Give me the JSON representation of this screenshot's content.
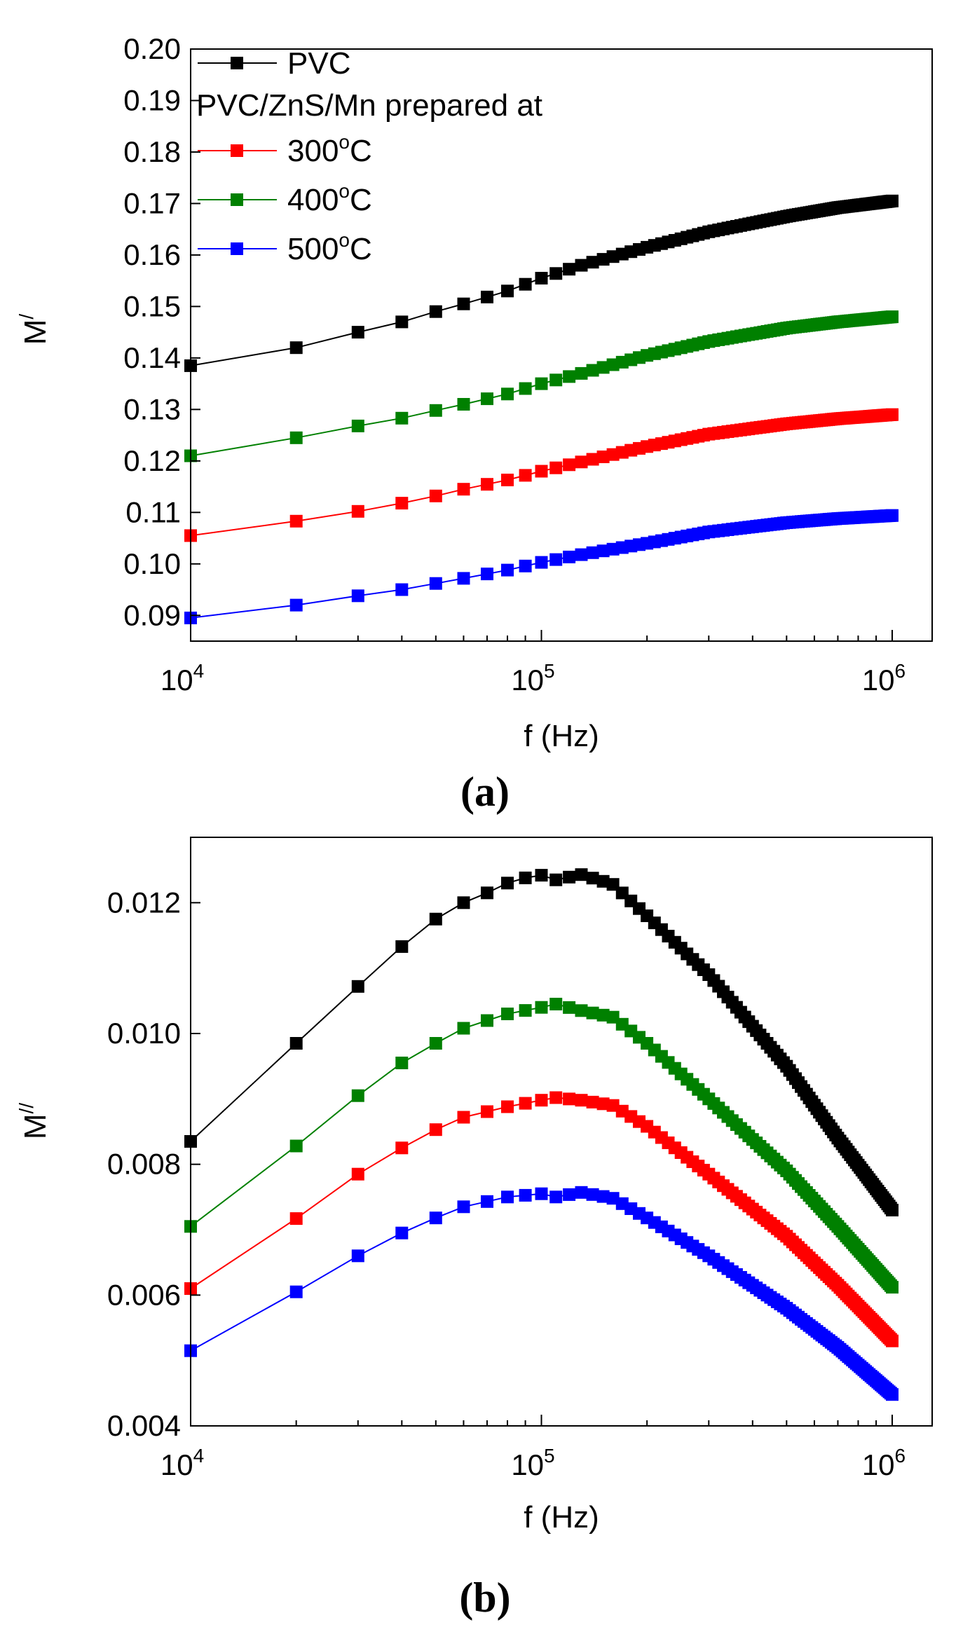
{
  "colors": {
    "PVC": "#000000",
    "300": "#ff0000",
    "400": "#008000",
    "500": "#0000ff"
  },
  "legend": {
    "items": [
      {
        "key": "PVC",
        "label": "PVC"
      },
      {
        "key": "heading",
        "label": "PVC/ZnS/Mn prepared at"
      },
      {
        "key": "300",
        "label": "300",
        "sup": "o",
        "unit": "C"
      },
      {
        "key": "400",
        "label": "400",
        "sup": "o",
        "unit": "C"
      },
      {
        "key": "500",
        "label": "500",
        "sup": "o",
        "unit": "C"
      }
    ]
  },
  "chart_data": [
    {
      "type": "scatter",
      "panel_label": "(a)",
      "xlabel": "f (Hz)",
      "ylabel_base": "M",
      "ylabel_sup": "/",
      "xscale": "log",
      "xlim": [
        10000,
        1300000
      ],
      "ylim": [
        0.085,
        0.2
      ],
      "x_ticks": [
        {
          "value": 10000,
          "base": "10",
          "exp": "4"
        },
        {
          "value": 100000,
          "base": "10",
          "exp": "5"
        },
        {
          "value": 1000000,
          "base": "10",
          "exp": "6"
        }
      ],
      "y_ticks": [
        {
          "value": 0.09,
          "label": "0.09"
        },
        {
          "value": 0.1,
          "label": "0.10"
        },
        {
          "value": 0.11,
          "label": "0.11"
        },
        {
          "value": 0.12,
          "label": "0.12"
        },
        {
          "value": 0.13,
          "label": "0.13"
        },
        {
          "value": 0.14,
          "label": "0.14"
        },
        {
          "value": 0.15,
          "label": "0.15"
        },
        {
          "value": 0.16,
          "label": "0.16"
        },
        {
          "value": 0.17,
          "label": "0.17"
        },
        {
          "value": 0.18,
          "label": "0.18"
        },
        {
          "value": 0.19,
          "label": "0.19"
        },
        {
          "value": 0.2,
          "label": "0.20"
        }
      ],
      "legend_position": "top-left",
      "series": [
        {
          "key": "PVC",
          "name": "PVC",
          "color": "#000000",
          "anchors": [
            [
              10000,
              0.1385
            ],
            [
              20000,
              0.142
            ],
            [
              30000,
              0.145
            ],
            [
              40000,
              0.147
            ],
            [
              50000,
              0.149
            ],
            [
              60000,
              0.1505
            ],
            [
              80000,
              0.153
            ],
            [
              100000,
              0.1555
            ],
            [
              130000,
              0.158
            ],
            [
              200000,
              0.1615
            ],
            [
              300000,
              0.1645
            ],
            [
              500000,
              0.1675
            ],
            [
              700000,
              0.1692
            ],
            [
              1000000,
              0.1705
            ]
          ]
        },
        {
          "key": "400",
          "name": "400oC",
          "color": "#008000",
          "anchors": [
            [
              10000,
              0.121
            ],
            [
              20000,
              0.1245
            ],
            [
              30000,
              0.1268
            ],
            [
              40000,
              0.1283
            ],
            [
              50000,
              0.1298
            ],
            [
              60000,
              0.131
            ],
            [
              80000,
              0.133
            ],
            [
              100000,
              0.135
            ],
            [
              130000,
              0.137
            ],
            [
              200000,
              0.1405
            ],
            [
              300000,
              0.1432
            ],
            [
              500000,
              0.1458
            ],
            [
              700000,
              0.147
            ],
            [
              1000000,
              0.148
            ]
          ]
        },
        {
          "key": "300",
          "name": "300oC",
          "color": "#ff0000",
          "anchors": [
            [
              10000,
              0.1055
            ],
            [
              20000,
              0.1083
            ],
            [
              30000,
              0.1102
            ],
            [
              40000,
              0.1118
            ],
            [
              50000,
              0.1132
            ],
            [
              60000,
              0.1145
            ],
            [
              80000,
              0.1163
            ],
            [
              100000,
              0.118
            ],
            [
              130000,
              0.1198
            ],
            [
              200000,
              0.1228
            ],
            [
              300000,
              0.1252
            ],
            [
              500000,
              0.1272
            ],
            [
              700000,
              0.1282
            ],
            [
              1000000,
              0.129
            ]
          ]
        },
        {
          "key": "500",
          "name": "500oC",
          "color": "#0000ff",
          "anchors": [
            [
              10000,
              0.0895
            ],
            [
              20000,
              0.092
            ],
            [
              30000,
              0.0938
            ],
            [
              40000,
              0.095
            ],
            [
              50000,
              0.0962
            ],
            [
              60000,
              0.0972
            ],
            [
              80000,
              0.0988
            ],
            [
              100000,
              0.1003
            ],
            [
              130000,
              0.1018
            ],
            [
              200000,
              0.104
            ],
            [
              300000,
              0.1062
            ],
            [
              500000,
              0.108
            ],
            [
              700000,
              0.1088
            ],
            [
              1000000,
              0.1094
            ]
          ]
        }
      ]
    },
    {
      "type": "scatter",
      "panel_label": "(b)",
      "xlabel": "f (Hz)",
      "ylabel_base": "M",
      "ylabel_sup": "//",
      "xscale": "log",
      "xlim": [
        10000,
        1300000
      ],
      "ylim": [
        0.004,
        0.013
      ],
      "x_ticks": [
        {
          "value": 10000,
          "base": "10",
          "exp": "4"
        },
        {
          "value": 100000,
          "base": "10",
          "exp": "5"
        },
        {
          "value": 1000000,
          "base": "10",
          "exp": "6"
        }
      ],
      "y_ticks": [
        {
          "value": 0.004,
          "label": "0.004"
        },
        {
          "value": 0.006,
          "label": "0.006"
        },
        {
          "value": 0.008,
          "label": "0.008"
        },
        {
          "value": 0.01,
          "label": "0.010"
        },
        {
          "value": 0.012,
          "label": "0.012"
        }
      ],
      "series": [
        {
          "key": "PVC",
          "name": "PVC",
          "color": "#000000",
          "anchors": [
            [
              10000,
              0.00835
            ],
            [
              20000,
              0.00985
            ],
            [
              30000,
              0.01072
            ],
            [
              40000,
              0.01133
            ],
            [
              50000,
              0.01175
            ],
            [
              60000,
              0.012
            ],
            [
              70000,
              0.01215
            ],
            [
              80000,
              0.0123
            ],
            [
              90000,
              0.01238
            ],
            [
              100000,
              0.01242
            ],
            [
              110000,
              0.01235
            ],
            [
              130000,
              0.01243
            ],
            [
              160000,
              0.01228
            ],
            [
              200000,
              0.0118
            ],
            [
              300000,
              0.0109
            ],
            [
              500000,
              0.0095
            ],
            [
              700000,
              0.0084
            ],
            [
              1000000,
              0.0073
            ]
          ]
        },
        {
          "key": "400",
          "name": "400oC",
          "color": "#008000",
          "anchors": [
            [
              10000,
              0.00705
            ],
            [
              20000,
              0.00828
            ],
            [
              30000,
              0.00905
            ],
            [
              40000,
              0.00955
            ],
            [
              50000,
              0.00985
            ],
            [
              60000,
              0.01008
            ],
            [
              80000,
              0.0103
            ],
            [
              100000,
              0.0104
            ],
            [
              110000,
              0.01045
            ],
            [
              130000,
              0.01035
            ],
            [
              160000,
              0.01025
            ],
            [
              200000,
              0.00985
            ],
            [
              300000,
              0.009
            ],
            [
              500000,
              0.0079
            ],
            [
              700000,
              0.00705
            ],
            [
              1000000,
              0.00612
            ]
          ]
        },
        {
          "key": "300",
          "name": "300oC",
          "color": "#ff0000",
          "anchors": [
            [
              10000,
              0.0061
            ],
            [
              20000,
              0.00717
            ],
            [
              30000,
              0.00785
            ],
            [
              40000,
              0.00825
            ],
            [
              50000,
              0.00853
            ],
            [
              60000,
              0.00872
            ],
            [
              80000,
              0.00888
            ],
            [
              100000,
              0.00898
            ],
            [
              110000,
              0.00902
            ],
            [
              130000,
              0.00898
            ],
            [
              160000,
              0.0089
            ],
            [
              200000,
              0.00858
            ],
            [
              300000,
              0.00785
            ],
            [
              500000,
              0.0069
            ],
            [
              700000,
              0.00615
            ],
            [
              1000000,
              0.0053
            ]
          ]
        },
        {
          "key": "500",
          "name": "500oC",
          "color": "#0000ff",
          "anchors": [
            [
              10000,
              0.00515
            ],
            [
              20000,
              0.00605
            ],
            [
              30000,
              0.0066
            ],
            [
              40000,
              0.00695
            ],
            [
              50000,
              0.00718
            ],
            [
              60000,
              0.00735
            ],
            [
              80000,
              0.0075
            ],
            [
              100000,
              0.00755
            ],
            [
              110000,
              0.0075
            ],
            [
              130000,
              0.00757
            ],
            [
              160000,
              0.00748
            ],
            [
              200000,
              0.00718
            ],
            [
              300000,
              0.0066
            ],
            [
              500000,
              0.0058
            ],
            [
              700000,
              0.0052
            ],
            [
              1000000,
              0.00448
            ]
          ]
        }
      ]
    }
  ]
}
